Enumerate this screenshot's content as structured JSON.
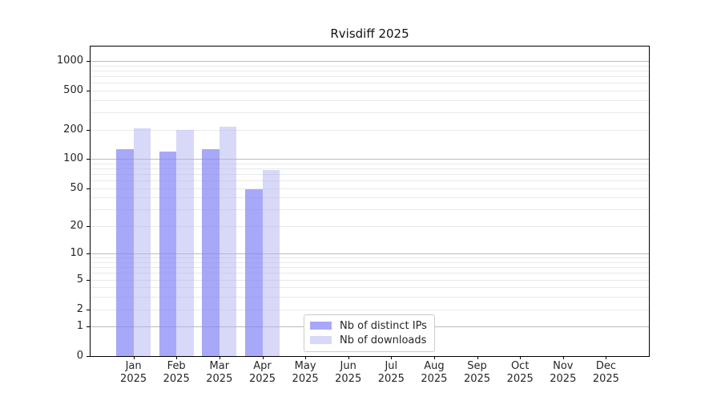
{
  "title": "Rvisdiff 2025",
  "chart_data": {
    "type": "bar",
    "title": "Rvisdiff 2025",
    "year": "2025",
    "months": [
      "Jan",
      "Feb",
      "Mar",
      "Apr",
      "May",
      "Jun",
      "Jul",
      "Aug",
      "Sep",
      "Oct",
      "Nov",
      "Dec"
    ],
    "categories": [
      "Jan 2025",
      "Feb 2025",
      "Mar 2025",
      "Apr 2025",
      "May 2025",
      "Jun 2025",
      "Jul 2025",
      "Aug 2025",
      "Sep 2025",
      "Oct 2025",
      "Nov 2025",
      "Dec 2025"
    ],
    "series": [
      {
        "name": "Nb of distinct IPs",
        "values": [
          127,
          120,
          126,
          49,
          0,
          0,
          0,
          0,
          0,
          0,
          0,
          0
        ],
        "color": "rgba(134,134,245,0.72)"
      },
      {
        "name": "Nb of downloads",
        "values": [
          205,
          200,
          216,
          77,
          0,
          0,
          0,
          0,
          0,
          0,
          0,
          0
        ],
        "color": "rgba(177,177,241,0.5)"
      }
    ],
    "yscale": "log1p",
    "yticks": [
      0,
      1,
      2,
      5,
      10,
      20,
      50,
      100,
      200,
      500,
      1000
    ],
    "ylim": [
      0,
      1400
    ],
    "grid": "horizontal",
    "legend_position": "lower-center-inside"
  },
  "legend": {
    "items": [
      {
        "label": "Nb of distinct IPs",
        "color": "rgba(134,134,245,0.72)"
      },
      {
        "label": "Nb of downloads",
        "color": "rgba(177,177,241,0.5)"
      }
    ]
  },
  "colors": {
    "grid_major": "#bbbbbb",
    "grid_minor": "#e9e9e9",
    "axis": "#000000",
    "text": "#262626",
    "background": "#ffffff"
  }
}
